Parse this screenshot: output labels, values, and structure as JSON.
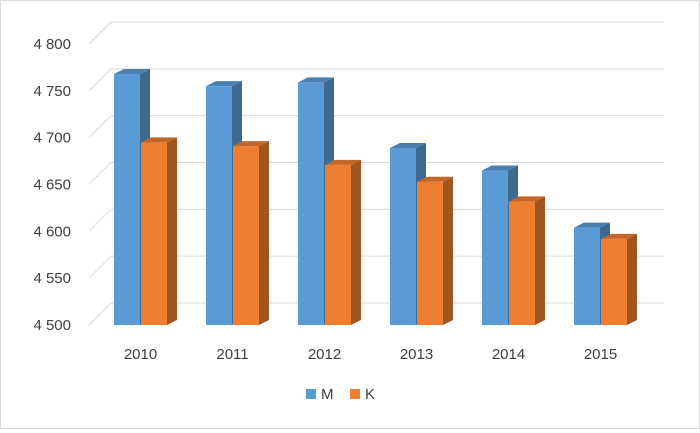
{
  "chart_data": {
    "type": "bar",
    "title": "",
    "xlabel": "",
    "ylabel": "",
    "categories": [
      "2010",
      "2011",
      "2012",
      "2013",
      "2014",
      "2015"
    ],
    "series": [
      {
        "name": "M",
        "values": [
          4768,
          4755,
          4759,
          4689,
          4665,
          4604
        ],
        "color": "#5b9bd5"
      },
      {
        "name": "K",
        "values": [
          4695,
          4691,
          4671,
          4653,
          4632,
          4592
        ],
        "color": "#ed7d31"
      }
    ],
    "ylim": [
      4500,
      4800
    ],
    "yticks": [
      {
        "value": 4500,
        "label": "4 500"
      },
      {
        "value": 4550,
        "label": "4 550"
      },
      {
        "value": 4600,
        "label": "4 600"
      },
      {
        "value": 4650,
        "label": "4 650"
      },
      {
        "value": 4700,
        "label": "4 700"
      },
      {
        "value": 4750,
        "label": "4 750"
      },
      {
        "value": 4800,
        "label": "4 800"
      }
    ],
    "grid": true,
    "style": "3d-clustered-column",
    "legend_position": "bottom"
  }
}
